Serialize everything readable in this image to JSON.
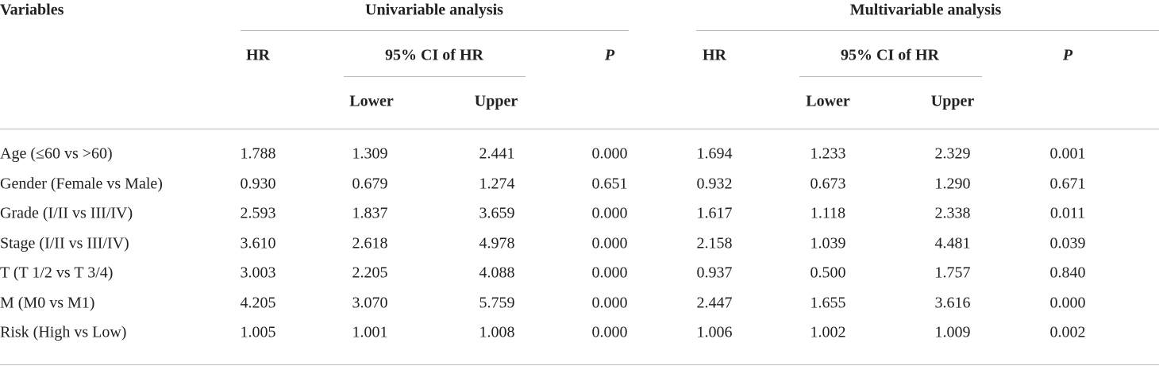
{
  "table": {
    "header": {
      "variables": "Variables",
      "groups": [
        {
          "title": "Univariable analysis",
          "hr": "HR",
          "ci": "95% CI of HR",
          "lower": "Lower",
          "upper": "Upper",
          "p": "P"
        },
        {
          "title": "Multivariable analysis",
          "hr": "HR",
          "ci": "95% CI of HR",
          "lower": "Lower",
          "upper": "Upper",
          "p": "P"
        }
      ]
    },
    "rows": [
      [
        "Age (≤60 vs >60)",
        "1.788",
        "1.309",
        "2.441",
        "0.000",
        "1.694",
        "1.233",
        "2.329",
        "0.001"
      ],
      [
        "Gender (Female vs Male)",
        "0.930",
        "0.679",
        "1.274",
        "0.651",
        "0.932",
        "0.673",
        "1.290",
        "0.671"
      ],
      [
        "Grade (I/II vs III/IV)",
        "2.593",
        "1.837",
        "3.659",
        "0.000",
        "1.617",
        "1.118",
        "2.338",
        "0.011"
      ],
      [
        "Stage (I/II vs III/IV)",
        "3.610",
        "2.618",
        "4.978",
        "0.000",
        "2.158",
        "1.039",
        "4.481",
        "0.039"
      ],
      [
        "T (T 1/2 vs T 3/4)",
        "3.003",
        "2.205",
        "4.088",
        "0.000",
        "0.937",
        "0.500",
        "1.757",
        "0.840"
      ],
      [
        "M (M0 vs M1)",
        "4.205",
        "3.070",
        "5.759",
        "0.000",
        "2.447",
        "1.655",
        "3.616",
        "0.000"
      ],
      [
        "Risk (High vs Low)",
        "1.005",
        "1.001",
        "1.008",
        "0.000",
        "1.006",
        "1.002",
        "1.009",
        "0.002"
      ]
    ]
  }
}
